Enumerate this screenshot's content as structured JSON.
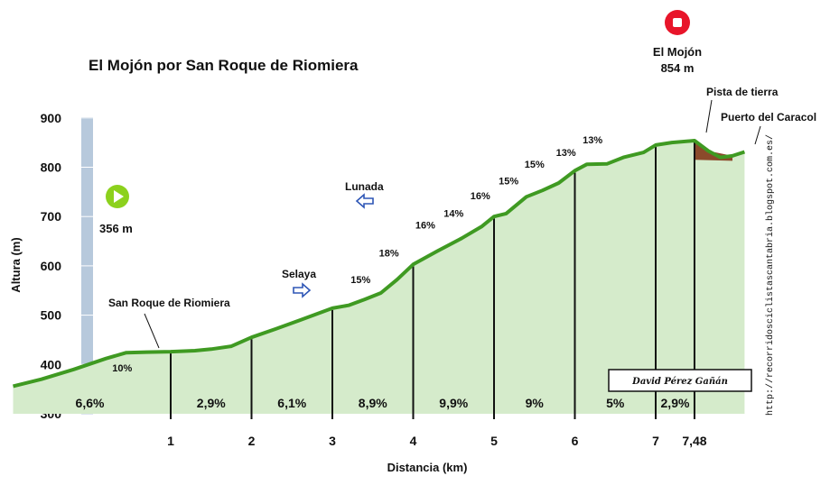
{
  "colors": {
    "fill": "#d5ebcb",
    "line": "#3f9a22",
    "axis_bar": "#b7c9dc",
    "dirt": "#8b4a2b",
    "start": "#8cd11d",
    "end": "#e8152a",
    "arrow": "#2e56b6",
    "gridline": "#cccccc"
  },
  "chart_data": {
    "type": "area",
    "title": "El Mojón por San Roque de Riomiera",
    "xlabel": "Distancia (km)",
    "ylabel": "Altura (m)",
    "ylim": [
      300,
      900
    ],
    "xlim": [
      -0.95,
      8.1
    ],
    "y_ticks": [
      "300",
      "400",
      "500",
      "600",
      "700",
      "800",
      "900"
    ],
    "x_ticks": [
      {
        "x": 1,
        "label": "1"
      },
      {
        "x": 2,
        "label": "2"
      },
      {
        "x": 3,
        "label": "3"
      },
      {
        "x": 4,
        "label": "4"
      },
      {
        "x": 5,
        "label": "5"
      },
      {
        "x": 6,
        "label": "6"
      },
      {
        "x": 7,
        "label": "7"
      },
      {
        "x": 7.48,
        "label": "7,48"
      }
    ],
    "profile": [
      {
        "x": -0.95,
        "y": 356
      },
      {
        "x": -0.6,
        "y": 370
      },
      {
        "x": -0.2,
        "y": 390
      },
      {
        "x": 0.2,
        "y": 412
      },
      {
        "x": 0.45,
        "y": 424
      },
      {
        "x": 0.7,
        "y": 425
      },
      {
        "x": 1.0,
        "y": 426
      },
      {
        "x": 1.3,
        "y": 428
      },
      {
        "x": 1.5,
        "y": 431
      },
      {
        "x": 1.75,
        "y": 437
      },
      {
        "x": 2.0,
        "y": 455
      },
      {
        "x": 2.3,
        "y": 472
      },
      {
        "x": 2.6,
        "y": 490
      },
      {
        "x": 2.8,
        "y": 502
      },
      {
        "x": 3.0,
        "y": 514
      },
      {
        "x": 3.2,
        "y": 520
      },
      {
        "x": 3.4,
        "y": 532
      },
      {
        "x": 3.6,
        "y": 545
      },
      {
        "x": 3.8,
        "y": 572
      },
      {
        "x": 4.0,
        "y": 603
      },
      {
        "x": 4.3,
        "y": 630
      },
      {
        "x": 4.6,
        "y": 656
      },
      {
        "x": 4.85,
        "y": 680
      },
      {
        "x": 5.0,
        "y": 700
      },
      {
        "x": 5.15,
        "y": 706
      },
      {
        "x": 5.4,
        "y": 740
      },
      {
        "x": 5.6,
        "y": 753
      },
      {
        "x": 5.8,
        "y": 768
      },
      {
        "x": 6.0,
        "y": 793
      },
      {
        "x": 6.15,
        "y": 806
      },
      {
        "x": 6.4,
        "y": 807
      },
      {
        "x": 6.6,
        "y": 820
      },
      {
        "x": 6.85,
        "y": 830
      },
      {
        "x": 7.0,
        "y": 845
      },
      {
        "x": 7.2,
        "y": 850
      },
      {
        "x": 7.48,
        "y": 854
      },
      {
        "x": 7.65,
        "y": 833
      },
      {
        "x": 7.8,
        "y": 820
      },
      {
        "x": 7.95,
        "y": 823
      },
      {
        "x": 8.1,
        "y": 831
      }
    ],
    "dirt_section": [
      {
        "x": 7.48,
        "y": 854
      },
      {
        "x": 7.65,
        "y": 833
      },
      {
        "x": 7.95,
        "y": 823
      },
      {
        "x": 7.95,
        "y": 813
      },
      {
        "x": 7.48,
        "y": 815
      }
    ],
    "dividers": [
      1,
      2,
      3,
      4,
      5,
      6,
      7,
      7.48
    ],
    "segments": [
      {
        "x": 0.0,
        "label": "6,6%"
      },
      {
        "x": 1.5,
        "label": "2,9%"
      },
      {
        "x": 2.5,
        "label": "6,1%"
      },
      {
        "x": 3.5,
        "label": "8,9%"
      },
      {
        "x": 4.5,
        "label": "9,9%"
      },
      {
        "x": 5.5,
        "label": "9%"
      },
      {
        "x": 6.5,
        "label": "5%"
      },
      {
        "x": 7.24,
        "label": "2,9%"
      }
    ],
    "slope_labels": [
      {
        "x": 0.4,
        "y": 386,
        "label": "10%"
      },
      {
        "x": 3.35,
        "y": 565,
        "label": "15%"
      },
      {
        "x": 3.7,
        "y": 619,
        "label": "18%"
      },
      {
        "x": 4.15,
        "y": 676,
        "label": "16%"
      },
      {
        "x": 4.5,
        "y": 699,
        "label": "14%"
      },
      {
        "x": 4.83,
        "y": 735,
        "label": "16%"
      },
      {
        "x": 5.18,
        "y": 765,
        "label": "15%"
      },
      {
        "x": 5.5,
        "y": 799,
        "label": "15%"
      },
      {
        "x": 5.89,
        "y": 823,
        "label": "13%"
      },
      {
        "x": 6.22,
        "y": 848,
        "label": "13%"
      }
    ],
    "annotations": {
      "start": {
        "label": "356 m",
        "x": -0.55,
        "y": 720
      },
      "summit": {
        "name": "El Mojón",
        "alt": "854 m"
      },
      "san_roque": {
        "label": "San Roque de Riomiera"
      },
      "selaya": {
        "label": "Selaya"
      },
      "lunada": {
        "label": "Lunada"
      },
      "pista": {
        "label": "Pista de tierra"
      },
      "caracol": {
        "label": "Puerto del Caracol"
      }
    },
    "credit": "David Pérez Gañán",
    "url": "http://recorridosciclistascantabria.blogspot.com.es/"
  }
}
